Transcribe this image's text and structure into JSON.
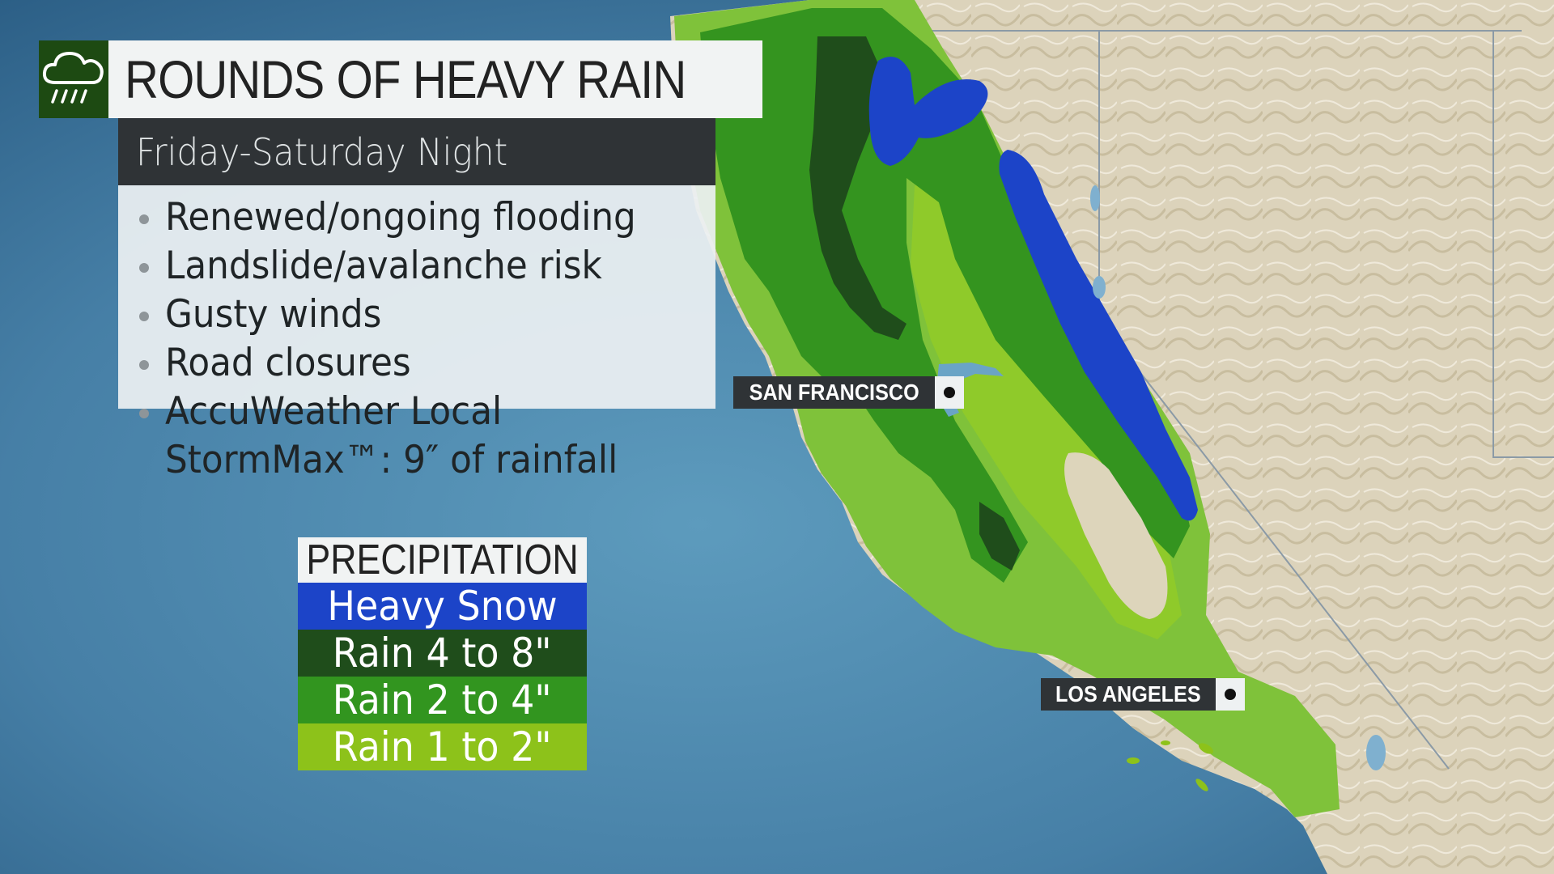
{
  "header": {
    "title": "ROUNDS OF HEAVY RAIN",
    "subtitle": "Friday-Saturday Night",
    "icon": "rain-cloud-icon"
  },
  "impacts": [
    "Renewed/ongoing flooding",
    "Landslide/avalanche risk",
    "Gusty winds",
    "Road closures",
    "AccuWeather Local",
    "StormMax™: 9″ of rainfall"
  ],
  "legend": {
    "title": "PRECIPITATION",
    "items": [
      {
        "label": "Heavy Snow",
        "color": "#1c44c8"
      },
      {
        "label": "Rain 4 to 8\"",
        "color": "#1f4d1b"
      },
      {
        "label": "Rain 2 to 4\"",
        "color": "#32951f"
      },
      {
        "label": "Rain 1 to 2\"",
        "color": "#8dc21a"
      }
    ]
  },
  "cities": [
    {
      "name": "SAN FRANCISCO"
    },
    {
      "name": "LOS ANGELES"
    }
  ],
  "colors": {
    "ocean": "#4a87ad",
    "land": "#ddd4bd",
    "snow": "#1c44c8",
    "rain_4_8": "#1f4d1b",
    "rain_2_4": "#32951f",
    "rain_1_2": "#8dc21a",
    "light_rain": "#7fc23a"
  }
}
